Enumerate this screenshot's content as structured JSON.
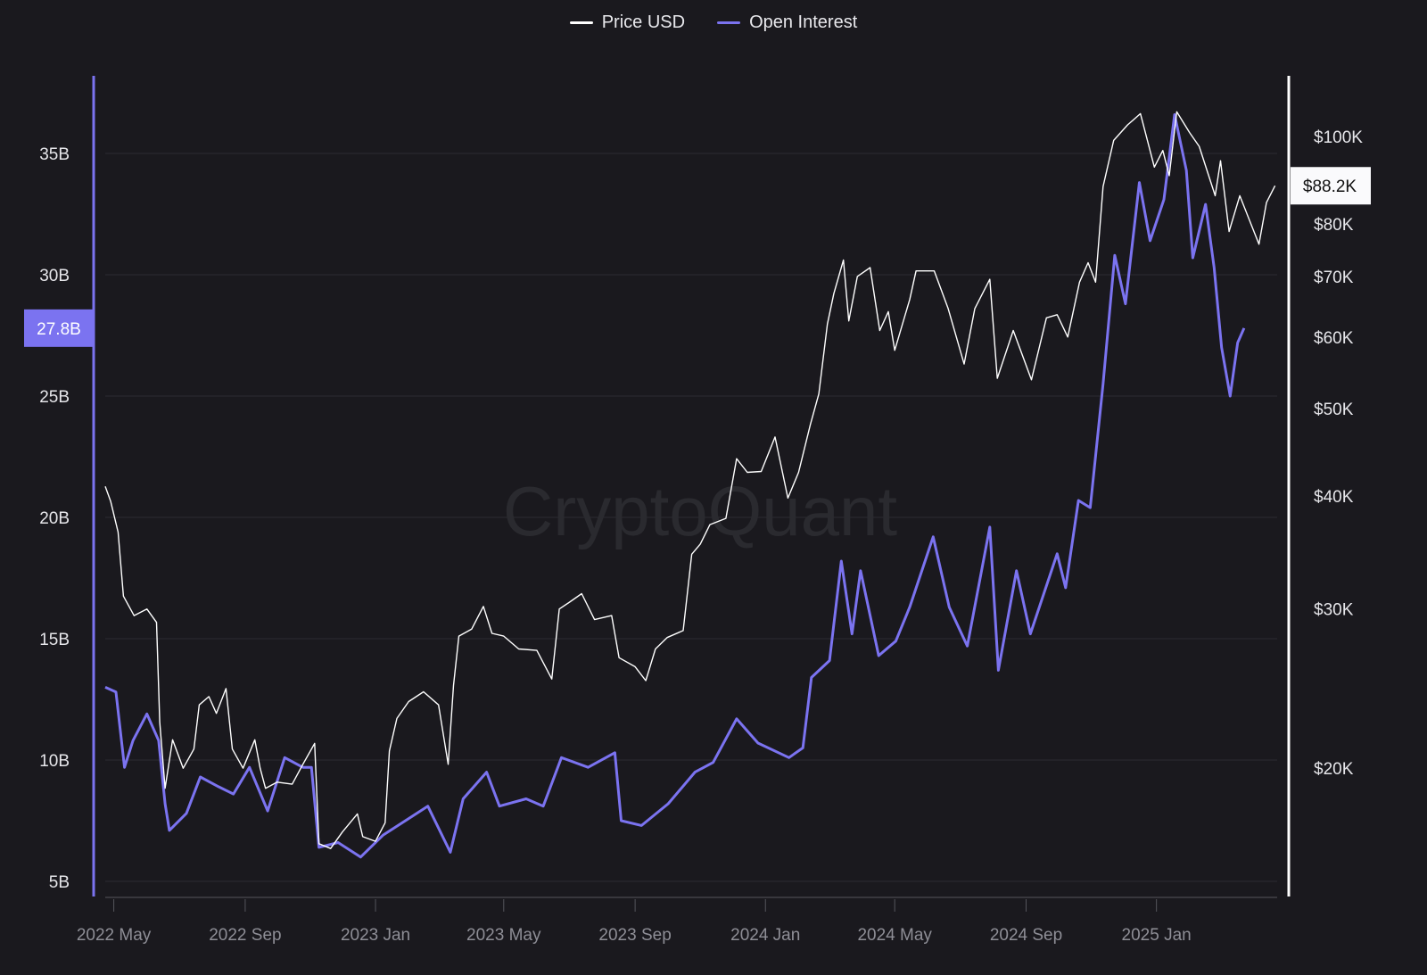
{
  "legend": {
    "items": [
      {
        "label": "Price USD",
        "color": "#ffffff"
      },
      {
        "label": "Open Interest",
        "color": "#7b73f0"
      }
    ]
  },
  "watermark": "CryptoQuant",
  "chart_data": {
    "type": "line",
    "x_range": [
      "2022-04-23",
      "2025-04-24"
    ],
    "x_ticks": [
      [
        "2022-05-01",
        "2022 May"
      ],
      [
        "2022-09-01",
        "2022 Sep"
      ],
      [
        "2023-01-01",
        "2023 Jan"
      ],
      [
        "2023-05-01",
        "2023 May"
      ],
      [
        "2023-09-01",
        "2023 Sep"
      ],
      [
        "2024-01-01",
        "2024 Jan"
      ],
      [
        "2024-05-01",
        "2024 May"
      ],
      [
        "2024-09-01",
        "2024 Sep"
      ],
      [
        "2025-01-01",
        "2025 Jan"
      ]
    ],
    "left_axis": {
      "series": "Open Interest",
      "unit": "B",
      "ticks": [
        5,
        10,
        15,
        20,
        25,
        30,
        35
      ],
      "tick_labels": [
        "5B",
        "10B",
        "15B",
        "20B",
        "25B",
        "30B",
        "35B"
      ],
      "current_label": "27.8B",
      "current_value": 27.8
    },
    "right_axis": {
      "series": "Price USD",
      "scale": "log",
      "ticks": [
        20000,
        30000,
        40000,
        50000,
        60000,
        70000,
        80000,
        100000
      ],
      "tick_labels": [
        "$20K",
        "$30K",
        "$40K",
        "$50K",
        "$60K",
        "$70K",
        "$80K",
        "$100K"
      ],
      "current_label": "$88.2K",
      "current_value": 88200
    },
    "grid": true,
    "legend_position": "top-center",
    "series": [
      {
        "name": "Price USD",
        "axis": "right",
        "color": "#ffffff",
        "points": [
          [
            "2022-04-23",
            41000
          ],
          [
            "2022-04-28",
            39500
          ],
          [
            "2022-05-05",
            36500
          ],
          [
            "2022-05-10",
            31000
          ],
          [
            "2022-05-20",
            29500
          ],
          [
            "2022-06-01",
            30000
          ],
          [
            "2022-06-10",
            29000
          ],
          [
            "2022-06-13",
            22500
          ],
          [
            "2022-06-18",
            19000
          ],
          [
            "2022-06-25",
            21500
          ],
          [
            "2022-07-05",
            20000
          ],
          [
            "2022-07-15",
            21000
          ],
          [
            "2022-07-20",
            23500
          ],
          [
            "2022-07-29",
            24000
          ],
          [
            "2022-08-05",
            23000
          ],
          [
            "2022-08-14",
            24500
          ],
          [
            "2022-08-20",
            21000
          ],
          [
            "2022-08-30",
            20000
          ],
          [
            "2022-09-10",
            21500
          ],
          [
            "2022-09-15",
            20000
          ],
          [
            "2022-09-20",
            19000
          ],
          [
            "2022-10-01",
            19300
          ],
          [
            "2022-10-15",
            19200
          ],
          [
            "2022-10-25",
            20200
          ],
          [
            "2022-11-05",
            21300
          ],
          [
            "2022-11-09",
            16500
          ],
          [
            "2022-11-20",
            16300
          ],
          [
            "2022-12-01",
            17000
          ],
          [
            "2022-12-15",
            17800
          ],
          [
            "2022-12-20",
            16800
          ],
          [
            "2023-01-01",
            16600
          ],
          [
            "2023-01-10",
            17400
          ],
          [
            "2023-01-14",
            20900
          ],
          [
            "2023-01-21",
            22700
          ],
          [
            "2023-02-01",
            23700
          ],
          [
            "2023-02-15",
            24300
          ],
          [
            "2023-03-01",
            23500
          ],
          [
            "2023-03-10",
            20200
          ],
          [
            "2023-03-15",
            24700
          ],
          [
            "2023-03-20",
            28000
          ],
          [
            "2023-04-01",
            28500
          ],
          [
            "2023-04-12",
            30200
          ],
          [
            "2023-04-20",
            28200
          ],
          [
            "2023-05-01",
            28000
          ],
          [
            "2023-05-15",
            27100
          ],
          [
            "2023-06-01",
            27000
          ],
          [
            "2023-06-15",
            25100
          ],
          [
            "2023-06-22",
            30000
          ],
          [
            "2023-07-01",
            30500
          ],
          [
            "2023-07-13",
            31200
          ],
          [
            "2023-07-25",
            29200
          ],
          [
            "2023-08-10",
            29500
          ],
          [
            "2023-08-17",
            26500
          ],
          [
            "2023-09-01",
            25900
          ],
          [
            "2023-09-11",
            25000
          ],
          [
            "2023-09-20",
            27100
          ],
          [
            "2023-10-01",
            27900
          ],
          [
            "2023-10-16",
            28400
          ],
          [
            "2023-10-24",
            34500
          ],
          [
            "2023-11-01",
            35400
          ],
          [
            "2023-11-10",
            37200
          ],
          [
            "2023-11-25",
            37800
          ],
          [
            "2023-12-05",
            44000
          ],
          [
            "2023-12-15",
            42500
          ],
          [
            "2023-12-28",
            42600
          ],
          [
            "2024-01-10",
            46500
          ],
          [
            "2024-01-22",
            39800
          ],
          [
            "2024-02-01",
            42500
          ],
          [
            "2024-02-12",
            48000
          ],
          [
            "2024-02-20",
            51900
          ],
          [
            "2024-02-28",
            62000
          ],
          [
            "2024-03-05",
            67000
          ],
          [
            "2024-03-14",
            73000
          ],
          [
            "2024-03-19",
            62500
          ],
          [
            "2024-03-27",
            70000
          ],
          [
            "2024-04-08",
            71600
          ],
          [
            "2024-04-17",
            61000
          ],
          [
            "2024-04-25",
            64000
          ],
          [
            "2024-05-01",
            58000
          ],
          [
            "2024-05-15",
            66000
          ],
          [
            "2024-05-21",
            71000
          ],
          [
            "2024-06-07",
            71000
          ],
          [
            "2024-06-20",
            64500
          ],
          [
            "2024-07-05",
            56000
          ],
          [
            "2024-07-15",
            64500
          ],
          [
            "2024-07-29",
            69500
          ],
          [
            "2024-08-05",
            54000
          ],
          [
            "2024-08-20",
            61000
          ],
          [
            "2024-09-06",
            53800
          ],
          [
            "2024-09-20",
            63000
          ],
          [
            "2024-09-30",
            63500
          ],
          [
            "2024-10-10",
            60000
          ],
          [
            "2024-10-21",
            69000
          ],
          [
            "2024-10-29",
            72500
          ],
          [
            "2024-11-05",
            69000
          ],
          [
            "2024-11-12",
            88000
          ],
          [
            "2024-11-22",
            99000
          ],
          [
            "2024-12-05",
            103000
          ],
          [
            "2024-12-17",
            106000
          ],
          [
            "2024-12-30",
            92500
          ],
          [
            "2025-01-07",
            96500
          ],
          [
            "2025-01-13",
            90500
          ],
          [
            "2025-01-20",
            106500
          ],
          [
            "2025-02-01",
            101000
          ],
          [
            "2025-02-10",
            97500
          ],
          [
            "2025-02-25",
            86000
          ],
          [
            "2025-03-02",
            94000
          ],
          [
            "2025-03-10",
            78500
          ],
          [
            "2025-03-20",
            86000
          ],
          [
            "2025-04-07",
            76000
          ],
          [
            "2025-04-14",
            84500
          ],
          [
            "2025-04-22",
            88200
          ]
        ]
      },
      {
        "name": "Open Interest",
        "axis": "left",
        "color": "#7b73f0",
        "points": [
          [
            "2022-04-23",
            13.0
          ],
          [
            "2022-05-03",
            12.8
          ],
          [
            "2022-05-11",
            9.7
          ],
          [
            "2022-05-19",
            10.8
          ],
          [
            "2022-06-01",
            11.9
          ],
          [
            "2022-06-12",
            10.8
          ],
          [
            "2022-06-18",
            8.2
          ],
          [
            "2022-06-22",
            7.1
          ],
          [
            "2022-07-08",
            7.8
          ],
          [
            "2022-07-21",
            9.3
          ],
          [
            "2022-08-07",
            8.9
          ],
          [
            "2022-08-21",
            8.6
          ],
          [
            "2022-09-05",
            9.7
          ],
          [
            "2022-09-22",
            7.9
          ],
          [
            "2022-10-08",
            10.1
          ],
          [
            "2022-10-25",
            9.7
          ],
          [
            "2022-11-02",
            9.7
          ],
          [
            "2022-11-09",
            6.4
          ],
          [
            "2022-11-27",
            6.6
          ],
          [
            "2022-12-18",
            6.0
          ],
          [
            "2023-01-08",
            6.9
          ],
          [
            "2023-01-29",
            7.5
          ],
          [
            "2023-02-19",
            8.1
          ],
          [
            "2023-03-12",
            6.2
          ],
          [
            "2023-03-24",
            8.4
          ],
          [
            "2023-04-15",
            9.5
          ],
          [
            "2023-04-27",
            8.1
          ],
          [
            "2023-05-22",
            8.4
          ],
          [
            "2023-06-07",
            8.1
          ],
          [
            "2023-06-24",
            10.1
          ],
          [
            "2023-07-19",
            9.7
          ],
          [
            "2023-08-13",
            10.3
          ],
          [
            "2023-08-19",
            7.5
          ],
          [
            "2023-09-07",
            7.3
          ],
          [
            "2023-10-02",
            8.2
          ],
          [
            "2023-10-27",
            9.5
          ],
          [
            "2023-11-13",
            9.9
          ],
          [
            "2023-12-05",
            11.7
          ],
          [
            "2023-12-25",
            10.7
          ],
          [
            "2024-01-23",
            10.1
          ],
          [
            "2024-02-05",
            10.5
          ],
          [
            "2024-02-13",
            13.4
          ],
          [
            "2024-03-01",
            14.1
          ],
          [
            "2024-03-12",
            18.2
          ],
          [
            "2024-03-22",
            15.2
          ],
          [
            "2024-03-30",
            17.8
          ],
          [
            "2024-04-16",
            14.3
          ],
          [
            "2024-05-02",
            14.9
          ],
          [
            "2024-05-15",
            16.3
          ],
          [
            "2024-06-06",
            19.2
          ],
          [
            "2024-06-21",
            16.3
          ],
          [
            "2024-07-08",
            14.7
          ],
          [
            "2024-07-29",
            19.6
          ],
          [
            "2024-08-06",
            13.7
          ],
          [
            "2024-08-23",
            17.8
          ],
          [
            "2024-09-05",
            15.2
          ],
          [
            "2024-09-30",
            18.5
          ],
          [
            "2024-10-08",
            17.1
          ],
          [
            "2024-10-20",
            20.7
          ],
          [
            "2024-10-31",
            20.4
          ],
          [
            "2024-11-12",
            25.5
          ],
          [
            "2024-11-23",
            30.8
          ],
          [
            "2024-12-03",
            28.8
          ],
          [
            "2024-12-16",
            33.8
          ],
          [
            "2024-12-26",
            31.4
          ],
          [
            "2025-01-08",
            33.1
          ],
          [
            "2025-01-18",
            36.6
          ],
          [
            "2025-01-29",
            34.3
          ],
          [
            "2025-02-04",
            30.7
          ],
          [
            "2025-02-16",
            32.9
          ],
          [
            "2025-02-24",
            30.3
          ],
          [
            "2025-03-03",
            27.0
          ],
          [
            "2025-03-11",
            25.0
          ],
          [
            "2025-03-18",
            27.2
          ],
          [
            "2025-03-24",
            27.8
          ]
        ]
      }
    ]
  }
}
